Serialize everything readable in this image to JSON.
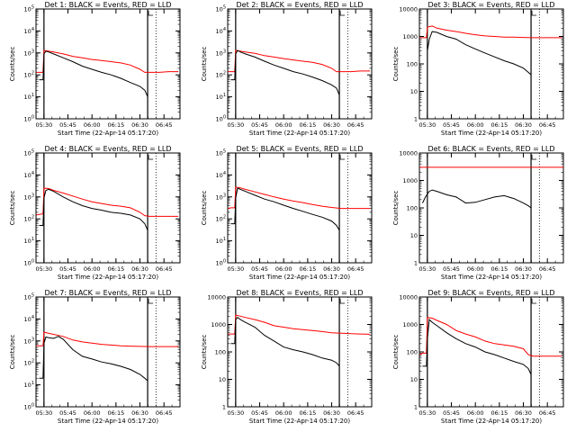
{
  "colors": {
    "events": "#000000",
    "lld": "#ff0000",
    "axes": "#000000",
    "background": "#ffffff"
  },
  "x_tick_labels": [
    "05:30",
    "05:45",
    "06:00",
    "06:15",
    "06:30",
    "06:45"
  ],
  "xlabel": "Start Time (22-Apr-14 05:17:20)",
  "ylabel": "Counts/sec",
  "chart_data": [
    {
      "type": "line",
      "title": "Det 1: BLACK = Events, RED = LLD",
      "yscale": "log",
      "ylim": [
        1,
        100000
      ],
      "y_tick_labels": [
        "10^0",
        "10^1",
        "10^2",
        "10^3",
        "10^4",
        "10^5"
      ],
      "xlim": [
        5.417,
        6.917
      ],
      "xtick_hours": [
        5.5,
        5.75,
        6.0,
        6.25,
        6.5,
        6.75
      ],
      "vlines": [
        5.5,
        6.58
      ],
      "dotted_vlines": [
        6.667
      ],
      "series": [
        {
          "color": "events",
          "x": [
            5.45,
            5.49,
            5.5,
            5.52,
            5.55,
            5.6,
            5.7,
            5.8,
            5.9,
            6.0,
            6.1,
            6.2,
            6.3,
            6.4,
            6.5,
            6.55,
            6.58
          ],
          "y": [
            60,
            60,
            900,
            1200,
            1100,
            900,
            600,
            400,
            250,
            180,
            130,
            100,
            70,
            45,
            30,
            20,
            10
          ]
        },
        {
          "color": "lld",
          "x": [
            5.42,
            5.45,
            5.49,
            5.5,
            5.55,
            5.6,
            5.7,
            5.8,
            5.9,
            6.0,
            6.1,
            6.2,
            6.3,
            6.4,
            6.5,
            6.55,
            6.6,
            6.7,
            6.8,
            6.9
          ],
          "y": [
            130,
            130,
            130,
            1300,
            1200,
            1100,
            900,
            700,
            600,
            500,
            450,
            400,
            350,
            280,
            180,
            130,
            130,
            130,
            140,
            140
          ]
        }
      ]
    },
    {
      "type": "line",
      "title": "Det 2: BLACK = Events, RED = LLD",
      "yscale": "log",
      "ylim": [
        1,
        100000
      ],
      "y_tick_labels": [
        "10^0",
        "10^1",
        "10^2",
        "10^3",
        "10^4",
        "10^5"
      ],
      "xlim": [
        5.417,
        6.917
      ],
      "xtick_hours": [
        5.5,
        5.75,
        6.0,
        6.25,
        6.5,
        6.75
      ],
      "vlines": [
        5.5,
        6.58
      ],
      "dotted_vlines": [
        6.667
      ],
      "series": [
        {
          "color": "events",
          "x": [
            5.45,
            5.49,
            5.5,
            5.52,
            5.55,
            5.6,
            5.7,
            5.8,
            5.9,
            6.0,
            6.1,
            6.2,
            6.3,
            6.4,
            6.5,
            6.55,
            6.58
          ],
          "y": [
            60,
            60,
            900,
            1300,
            1100,
            900,
            650,
            420,
            280,
            200,
            140,
            110,
            80,
            55,
            35,
            25,
            12
          ]
        },
        {
          "color": "lld",
          "x": [
            5.42,
            5.45,
            5.49,
            5.5,
            5.55,
            5.6,
            5.7,
            5.8,
            5.9,
            6.0,
            6.1,
            6.2,
            6.3,
            6.4,
            6.5,
            6.55,
            6.6,
            6.7,
            6.8,
            6.9
          ],
          "y": [
            140,
            140,
            140,
            1300,
            1200,
            1100,
            950,
            750,
            650,
            550,
            480,
            420,
            370,
            300,
            200,
            140,
            140,
            140,
            150,
            150
          ]
        }
      ]
    },
    {
      "type": "line",
      "title": "Det 3: BLACK = Events, RED = LLD",
      "yscale": "log",
      "ylim": [
        1,
        10000
      ],
      "y_tick_labels": [
        "1",
        "10",
        "100",
        "1000",
        "10000"
      ],
      "xlim": [
        5.417,
        6.917
      ],
      "xtick_hours": [
        5.5,
        5.75,
        6.0,
        6.25,
        6.5,
        6.75
      ],
      "vlines": [
        5.5,
        6.58
      ],
      "dotted_vlines": [
        6.667
      ],
      "series": [
        {
          "color": "events",
          "x": [
            5.5,
            5.52,
            5.55,
            5.6,
            5.7,
            5.8,
            5.9,
            6.0,
            6.1,
            6.2,
            6.3,
            6.4,
            6.5,
            6.55,
            6.58
          ],
          "y": [
            300,
            800,
            1500,
            1400,
            1000,
            800,
            500,
            350,
            250,
            180,
            130,
            100,
            70,
            50,
            40
          ]
        },
        {
          "color": "lld",
          "x": [
            5.42,
            5.45,
            5.49,
            5.5,
            5.55,
            5.6,
            5.7,
            5.8,
            5.9,
            6.0,
            6.1,
            6.2,
            6.3,
            6.4,
            6.5,
            6.6,
            6.7,
            6.8,
            6.9
          ],
          "y": [
            900,
            900,
            900,
            2200,
            2400,
            2000,
            1700,
            1500,
            1300,
            1150,
            1050,
            1000,
            950,
            950,
            920,
            900,
            900,
            900,
            900
          ]
        }
      ]
    },
    {
      "type": "line",
      "title": "Det 4: BLACK = Events, RED = LLD",
      "yscale": "log",
      "ylim": [
        1,
        100000
      ],
      "y_tick_labels": [
        "10^0",
        "10^1",
        "10^2",
        "10^3",
        "10^4",
        "10^5"
      ],
      "xlim": [
        5.417,
        6.917
      ],
      "xtick_hours": [
        5.5,
        5.75,
        6.0,
        6.25,
        6.5,
        6.75
      ],
      "vlines": [
        5.5,
        6.58
      ],
      "dotted_vlines": [
        6.667
      ],
      "series": [
        {
          "color": "events",
          "x": [
            5.45,
            5.49,
            5.5,
            5.52,
            5.55,
            5.6,
            5.7,
            5.8,
            5.9,
            6.0,
            6.1,
            6.2,
            6.3,
            6.4,
            6.5,
            6.55,
            6.58
          ],
          "y": [
            50,
            50,
            900,
            2000,
            2200,
            1800,
            1000,
            600,
            400,
            300,
            250,
            200,
            180,
            150,
            100,
            60,
            30
          ]
        },
        {
          "color": "lld",
          "x": [
            5.42,
            5.45,
            5.49,
            5.5,
            5.55,
            5.6,
            5.7,
            5.8,
            5.9,
            6.0,
            6.1,
            6.2,
            6.3,
            6.4,
            6.5,
            6.55,
            6.6,
            6.7,
            6.8,
            6.9
          ],
          "y": [
            150,
            160,
            170,
            2500,
            2400,
            2000,
            1500,
            1100,
            800,
            600,
            500,
            420,
            380,
            320,
            200,
            140,
            130,
            130,
            130,
            130
          ]
        }
      ]
    },
    {
      "type": "line",
      "title": "Det 5: BLACK = Events, RED = LLD",
      "yscale": "log",
      "ylim": [
        1,
        100000
      ],
      "y_tick_labels": [
        "10^0",
        "10^1",
        "10^2",
        "10^3",
        "10^4",
        "10^5"
      ],
      "xlim": [
        5.417,
        6.917
      ],
      "xtick_hours": [
        5.5,
        5.75,
        6.0,
        6.25,
        6.5,
        6.75
      ],
      "vlines": [
        5.5,
        6.58
      ],
      "dotted_vlines": [
        6.667
      ],
      "series": [
        {
          "color": "events",
          "x": [
            5.45,
            5.49,
            5.5,
            5.52,
            5.55,
            5.6,
            5.7,
            5.8,
            5.9,
            6.0,
            6.1,
            6.2,
            6.3,
            6.4,
            6.5,
            6.55,
            6.58
          ],
          "y": [
            60,
            60,
            900,
            2500,
            2200,
            1800,
            1200,
            800,
            600,
            420,
            300,
            220,
            160,
            120,
            80,
            50,
            30
          ]
        },
        {
          "color": "lld",
          "x": [
            5.42,
            5.45,
            5.49,
            5.5,
            5.55,
            5.6,
            5.7,
            5.8,
            5.9,
            6.0,
            6.1,
            6.2,
            6.3,
            6.4,
            6.5,
            6.6,
            6.7,
            6.8,
            6.9
          ],
          "y": [
            300,
            320,
            320,
            2800,
            2600,
            2200,
            1700,
            1300,
            1000,
            800,
            650,
            550,
            450,
            380,
            330,
            300,
            300,
            300,
            300
          ]
        }
      ]
    },
    {
      "type": "line",
      "title": "Det 6: BLACK = Events, RED = LLD",
      "yscale": "log",
      "ylim": [
        1,
        10000
      ],
      "y_tick_labels": [
        "1",
        "10",
        "100",
        "1000",
        "10000"
      ],
      "xlim": [
        5.417,
        6.917
      ],
      "xtick_hours": [
        5.5,
        5.75,
        6.0,
        6.25,
        6.5,
        6.75
      ],
      "vlines": [
        5.5,
        6.58
      ],
      "dotted_vlines": [
        6.667
      ],
      "series": [
        {
          "color": "events",
          "x": [
            5.45,
            5.48,
            5.52,
            5.55,
            5.6,
            5.7,
            5.8,
            5.9,
            6.0,
            6.1,
            6.2,
            6.3,
            6.4,
            6.5,
            6.55,
            6.58
          ],
          "y": [
            150,
            250,
            400,
            450,
            400,
            300,
            250,
            150,
            160,
            200,
            250,
            280,
            220,
            150,
            120,
            100
          ]
        },
        {
          "color": "lld",
          "x": [
            5.42,
            6.917
          ],
          "y": [
            3000,
            3000
          ]
        }
      ]
    },
    {
      "type": "line",
      "title": "Det 7: BLACK = Events, RED = LLD",
      "yscale": "log",
      "ylim": [
        1,
        100000
      ],
      "y_tick_labels": [
        "10^0",
        "10^1",
        "10^2",
        "10^3",
        "10^4",
        "10^5"
      ],
      "xlim": [
        5.417,
        6.917
      ],
      "xtick_hours": [
        5.5,
        5.75,
        6.0,
        6.25,
        6.5,
        6.75
      ],
      "vlines": [
        5.5,
        6.58
      ],
      "dotted_vlines": [
        6.667
      ],
      "series": [
        {
          "color": "events",
          "x": [
            5.45,
            5.49,
            5.5,
            5.52,
            5.55,
            5.6,
            5.65,
            5.7,
            5.8,
            5.9,
            6.0,
            6.1,
            6.2,
            6.3,
            6.4,
            6.5,
            6.55,
            6.58
          ],
          "y": [
            20,
            20,
            800,
            1500,
            1400,
            1300,
            1600,
            1200,
            400,
            200,
            150,
            110,
            90,
            70,
            50,
            30,
            20,
            15
          ]
        },
        {
          "color": "lld",
          "x": [
            5.42,
            5.45,
            5.49,
            5.5,
            5.55,
            5.6,
            5.7,
            5.8,
            5.9,
            6.0,
            6.1,
            6.2,
            6.3,
            6.4,
            6.5,
            6.6,
            6.7,
            6.8,
            6.9
          ],
          "y": [
            600,
            600,
            600,
            2500,
            2200,
            2000,
            1600,
            1100,
            900,
            800,
            700,
            650,
            600,
            580,
            560,
            550,
            550,
            550,
            550
          ]
        }
      ]
    },
    {
      "type": "line",
      "title": "Det 8: BLACK = Events, RED = LLD",
      "yscale": "log",
      "ylim": [
        1,
        10000
      ],
      "y_tick_labels": [
        "1",
        "10",
        "100",
        "1000",
        "10000"
      ],
      "xlim": [
        5.417,
        6.917
      ],
      "xtick_hours": [
        5.5,
        5.75,
        6.0,
        6.25,
        6.5,
        6.75
      ],
      "vlines": [
        5.5,
        6.58
      ],
      "dotted_vlines": [
        6.667
      ],
      "series": [
        {
          "color": "events",
          "x": [
            5.45,
            5.49,
            5.5,
            5.52,
            5.55,
            5.6,
            5.7,
            5.8,
            5.9,
            6.0,
            6.1,
            6.2,
            6.3,
            6.4,
            6.5,
            6.55,
            6.58
          ],
          "y": [
            200,
            200,
            1500,
            1800,
            1500,
            1200,
            800,
            400,
            250,
            150,
            120,
            100,
            80,
            60,
            50,
            40,
            30
          ]
        },
        {
          "color": "lld",
          "x": [
            5.42,
            5.45,
            5.49,
            5.5,
            5.55,
            5.6,
            5.7,
            5.8,
            5.9,
            6.0,
            6.1,
            6.2,
            6.3,
            6.4,
            6.5,
            6.6,
            6.7,
            6.8,
            6.9
          ],
          "y": [
            450,
            450,
            450,
            2200,
            2000,
            1800,
            1500,
            1200,
            900,
            800,
            700,
            650,
            600,
            550,
            500,
            480,
            460,
            450,
            440
          ]
        }
      ]
    },
    {
      "type": "line",
      "title": "Det 9: BLACK = Events, RED = LLD",
      "yscale": "log",
      "ylim": [
        1,
        10000
      ],
      "y_tick_labels": [
        "1",
        "10",
        "100",
        "1000",
        "10000"
      ],
      "xlim": [
        5.417,
        6.917
      ],
      "xtick_hours": [
        5.5,
        5.75,
        6.0,
        6.25,
        6.5,
        6.75
      ],
      "vlines": [
        5.5,
        6.58
      ],
      "dotted_vlines": [
        6.667
      ],
      "series": [
        {
          "color": "events",
          "x": [
            5.45,
            5.49,
            5.5,
            5.52,
            5.55,
            5.6,
            5.7,
            5.8,
            5.9,
            6.0,
            6.1,
            6.2,
            6.3,
            6.4,
            6.5,
            6.55,
            6.58
          ],
          "y": [
            30,
            30,
            300,
            1500,
            1200,
            900,
            500,
            300,
            200,
            150,
            100,
            80,
            60,
            45,
            35,
            25,
            15
          ]
        },
        {
          "color": "lld",
          "x": [
            5.42,
            5.45,
            5.49,
            5.5,
            5.55,
            5.6,
            5.7,
            5.8,
            5.9,
            6.0,
            6.1,
            6.2,
            6.3,
            6.4,
            6.5,
            6.55,
            6.6,
            6.7,
            6.8,
            6.9
          ],
          "y": [
            80,
            90,
            90,
            1800,
            1700,
            1400,
            1000,
            600,
            450,
            350,
            250,
            200,
            180,
            160,
            130,
            80,
            70,
            70,
            70,
            70
          ]
        }
      ]
    }
  ]
}
